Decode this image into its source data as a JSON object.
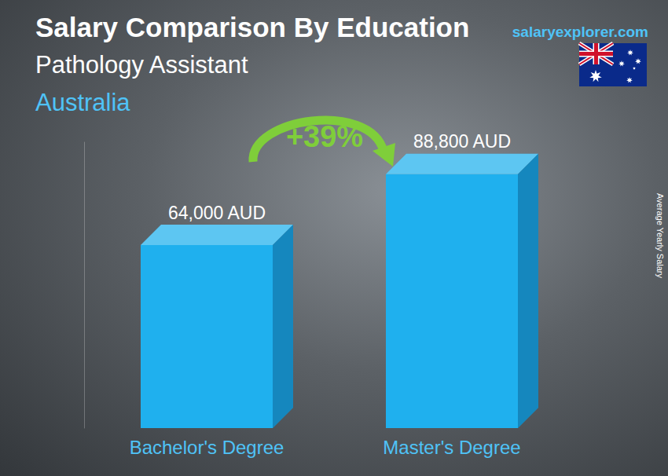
{
  "chart_data": {
    "type": "bar",
    "title": "Salary Comparison By Education",
    "subtitle": "Pathology Assistant",
    "region": "Australia",
    "source": "salaryexplorer.com",
    "ylabel": "Average Yearly Salary",
    "categories": [
      "Bachelor's Degree",
      "Master's Degree"
    ],
    "values": [
      64000,
      88800
    ],
    "value_labels": [
      "64,000 AUD",
      "88,800 AUD"
    ],
    "data_labels": true,
    "annotation": "+39%",
    "color": "#1fb0ee",
    "ylim": [
      0,
      100000
    ],
    "tick_labels": "x",
    "grid": false
  }
}
